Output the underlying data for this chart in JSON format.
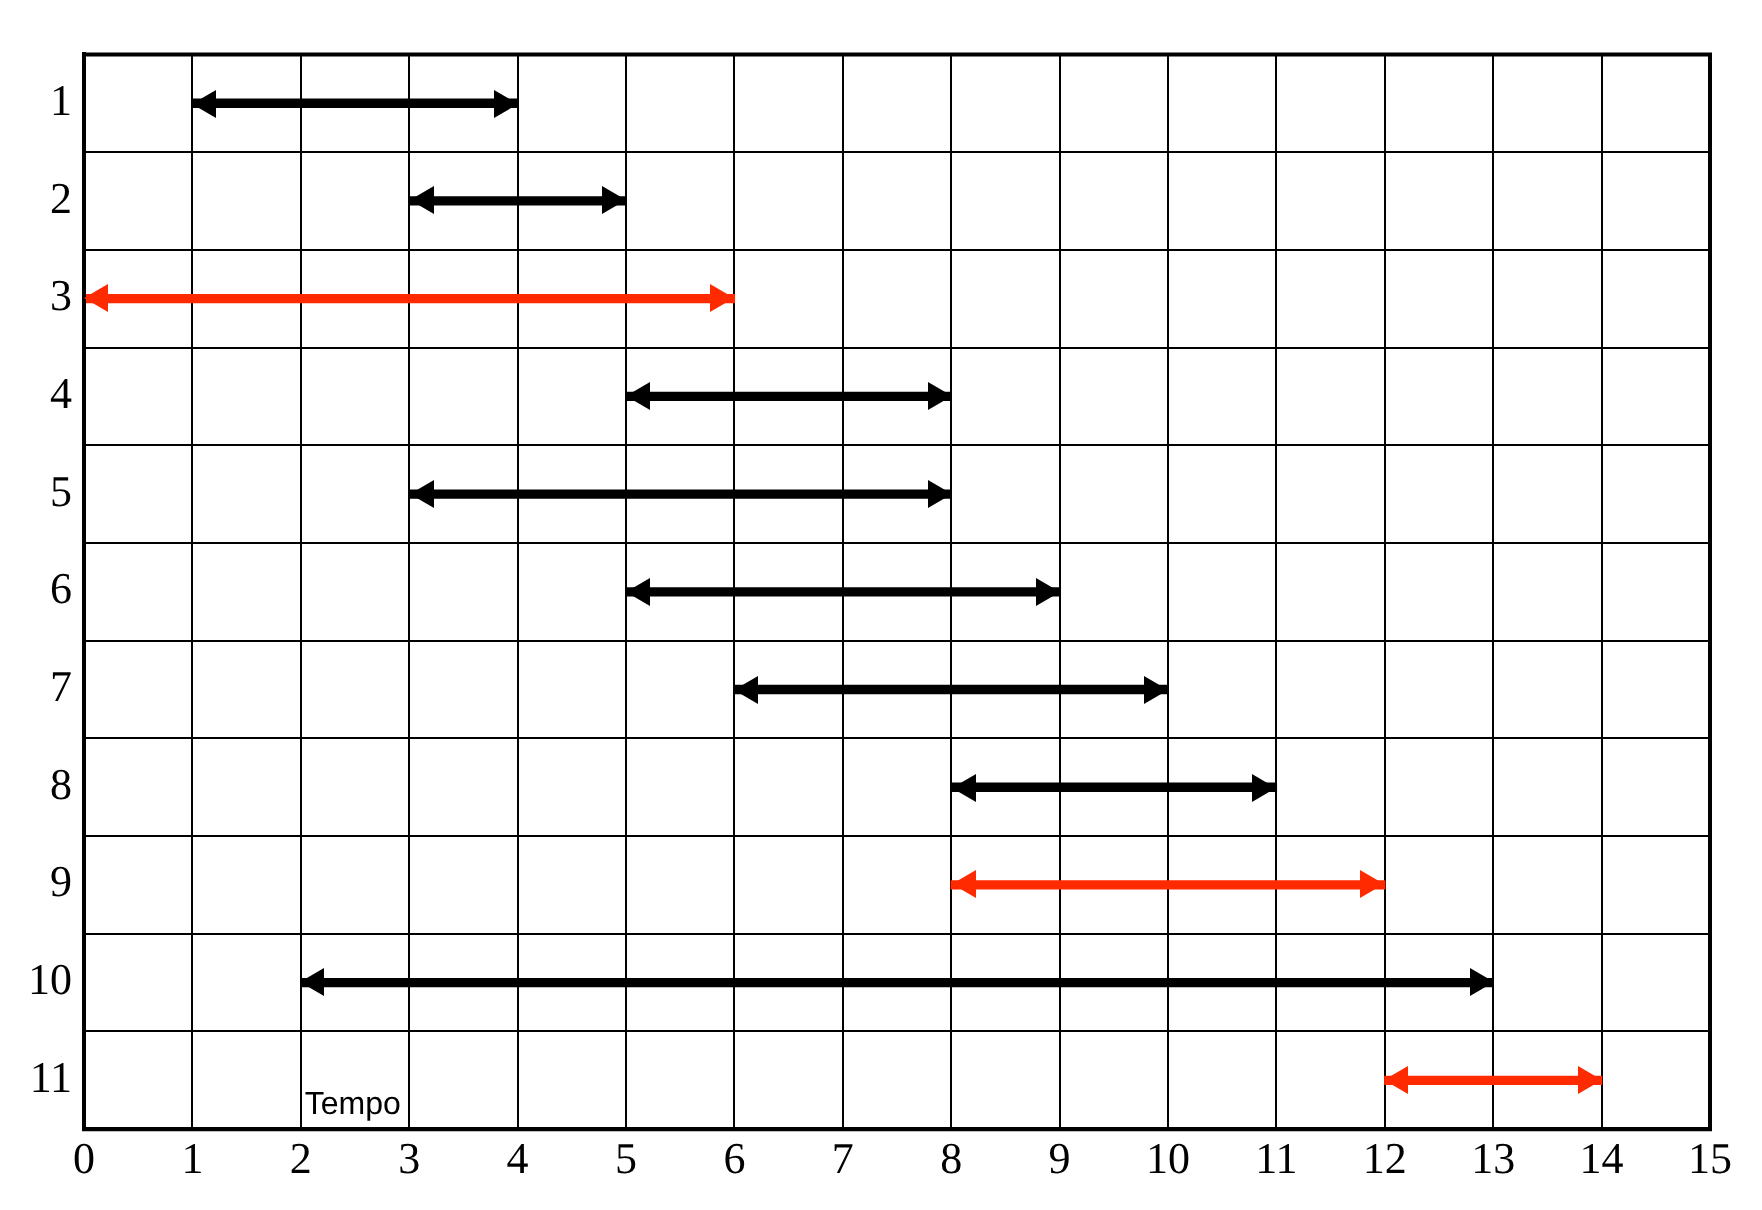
{
  "chart_data": {
    "type": "bar",
    "orientation": "horizontal",
    "categories": [
      "1",
      "2",
      "3",
      "4",
      "5",
      "6",
      "7",
      "8",
      "9",
      "10",
      "11"
    ],
    "base": [
      1,
      3,
      0,
      5,
      3,
      5,
      6,
      8,
      8,
      2,
      12
    ],
    "values": [
      3,
      2,
      6,
      3,
      5,
      4,
      4,
      3,
      4,
      11,
      2
    ],
    "colors": [
      "#000000",
      "#000000",
      "#ff2a00",
      "#000000",
      "#000000",
      "#000000",
      "#000000",
      "#000000",
      "#ff2a00",
      "#000000",
      "#ff2a00"
    ],
    "xlim": [
      0,
      15
    ],
    "xticks": [
      0,
      1,
      2,
      3,
      4,
      5,
      6,
      7,
      8,
      9,
      10,
      11,
      12,
      13,
      14,
      15
    ],
    "grid": true,
    "annotations": [
      "Tempo"
    ]
  }
}
